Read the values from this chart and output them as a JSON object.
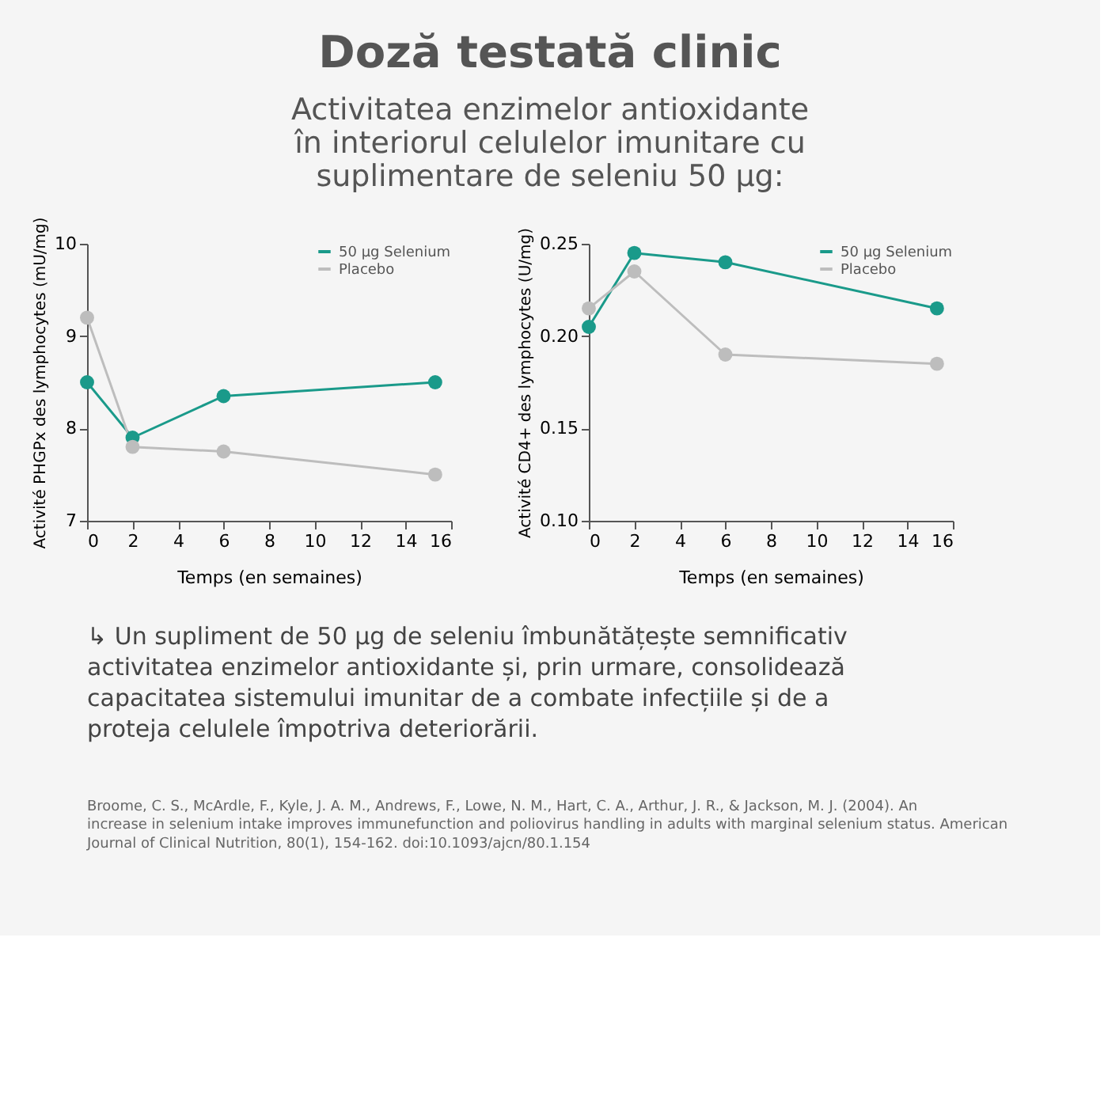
{
  "chart_data": [
    {
      "type": "line",
      "title": "Doză testată clinic",
      "subtitle": "Activitatea enzimelor antioxidante în interiorul celulelor imunitare cu suplimentare de seleniu 50 µg:",
      "xlabel": "Temps (en semaines)",
      "ylabel": "Activité PHGPx des lymphocytes (mU/mg)",
      "xlim": [
        0,
        16
      ],
      "xticks": [
        0,
        2,
        4,
        6,
        8,
        10,
        12,
        14,
        16
      ],
      "ylim": [
        7,
        10
      ],
      "yticks": [
        7,
        8,
        9,
        10
      ],
      "legend": "top right",
      "marker": "circle",
      "series": [
        {
          "name": "50 µg Selenium",
          "color": "#1a9a8a",
          "x": [
            0,
            2,
            6,
            15.3
          ],
          "values": [
            8.5,
            7.9,
            8.35,
            8.5
          ]
        },
        {
          "name": "Placebo",
          "color": "#bdbdbd",
          "x": [
            0,
            2,
            6,
            15.3
          ],
          "values": [
            9.2,
            7.8,
            7.75,
            7.5
          ]
        }
      ]
    },
    {
      "type": "line",
      "xlabel": "Temps (en semaines)",
      "ylabel": "Activité CD4+ des lymphocytes (U/mg)",
      "xlim": [
        0,
        16
      ],
      "xticks": [
        0,
        2,
        4,
        6,
        8,
        10,
        12,
        14,
        16
      ],
      "ylim": [
        0.1,
        0.25
      ],
      "yticks": [
        {
          "value": 0.1,
          "label": "0.10"
        },
        {
          "value": 0.15,
          "label": "0.15"
        },
        {
          "value": 0.2,
          "label": "0.20"
        },
        {
          "value": 0.25,
          "label": "0.25"
        }
      ],
      "legend": "top right",
      "marker": "circle",
      "series": [
        {
          "name": "50 µg Selenium",
          "color": "#1a9a8a",
          "x": [
            0,
            2,
            6,
            15.3
          ],
          "values": [
            0.205,
            0.245,
            0.24,
            0.215
          ]
        },
        {
          "name": "Placebo",
          "color": "#bdbdbd",
          "x": [
            0,
            2,
            6,
            15.3
          ],
          "values": [
            0.215,
            0.235,
            0.19,
            0.185
          ]
        }
      ],
      "annotations": [
        "↳ Un supliment de 50 µg de seleniu îmbunătățește semnificativ activitatea enzimelor antioxidante și, prin urmare, consolidează capacitatea sistemului imunitar de a combate infecțiile și de a proteja celulele împotriva deteriorării.",
        "Broome, C. S., McArdle, F., Kyle, J. A. M., Andrews, F., Lowe, N. M., Hart, C. A., Arthur, J. R., & Jackson, M. J. (2004). An increase in selenium intake improves immunefunction and poliovirus handling in adults with marginal selenium status. American Journal of Clinical Nutrition, 80(1), 154-162. doi:10.1093/ajcn/80.1.154"
      ]
    }
  ]
}
